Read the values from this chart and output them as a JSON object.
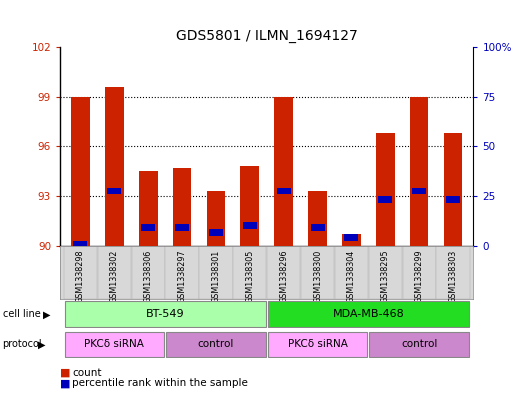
{
  "title": "GDS5801 / ILMN_1694127",
  "samples": [
    "GSM1338298",
    "GSM1338302",
    "GSM1338306",
    "GSM1338297",
    "GSM1338301",
    "GSM1338305",
    "GSM1338296",
    "GSM1338300",
    "GSM1338304",
    "GSM1338295",
    "GSM1338299",
    "GSM1338303"
  ],
  "red_values": [
    99.0,
    99.6,
    94.5,
    94.7,
    93.3,
    94.8,
    99.0,
    93.3,
    90.7,
    96.8,
    99.0,
    96.8
  ],
  "blue_values": [
    90.1,
    93.3,
    91.1,
    91.1,
    90.8,
    91.2,
    93.3,
    91.1,
    90.5,
    92.8,
    93.3,
    92.8
  ],
  "ymin": 90,
  "ymax": 102,
  "yticks_left": [
    90,
    93,
    96,
    99,
    102
  ],
  "yticks_right_positions": [
    90,
    93,
    96,
    99,
    102
  ],
  "yticks_right_labels": [
    "0",
    "25",
    "50",
    "75",
    "100%"
  ],
  "cell_line_groups": [
    {
      "label": "BT-549",
      "start": 0,
      "end": 6,
      "color": "#aaffaa"
    },
    {
      "label": "MDA-MB-468",
      "start": 6,
      "end": 12,
      "color": "#22dd22"
    }
  ],
  "protocol_groups": [
    {
      "label": "PKCδ siRNA",
      "start": 0,
      "end": 3,
      "color": "#ffaaff"
    },
    {
      "label": "control",
      "start": 3,
      "end": 6,
      "color": "#dd88dd"
    },
    {
      "label": "PKCδ siRNA",
      "start": 6,
      "end": 9,
      "color": "#ffaaff"
    },
    {
      "label": "control",
      "start": 9,
      "end": 12,
      "color": "#dd88dd"
    }
  ],
  "bar_color": "#cc2200",
  "blue_color": "#0000bb",
  "tick_color_left": "#cc2200",
  "tick_color_right": "#0000bb",
  "bar_width": 0.55,
  "legend_count_label": "count",
  "legend_pct_label": "percentile rank within the sample"
}
